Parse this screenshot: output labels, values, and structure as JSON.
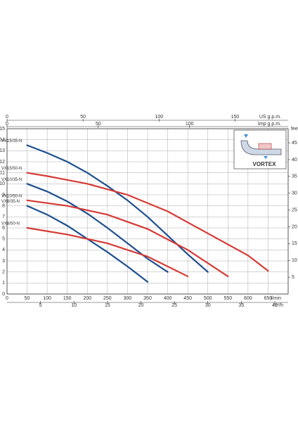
{
  "chart_data": {
    "type": "line",
    "x_label": "l/min",
    "x2_label": "m³/h",
    "top_label": "US g.p.m.",
    "top2_label": "Imp g.p.m.",
    "y2_label": "feet",
    "xlim": [
      0,
      700
    ],
    "xticks": [
      0,
      50,
      100,
      150,
      200,
      250,
      300,
      350,
      400,
      450,
      500,
      550,
      600,
      650
    ],
    "x2lim": [
      0,
      42
    ],
    "x2ticks": [
      5,
      10,
      15,
      20,
      25,
      30,
      35,
      40
    ],
    "toplim": [
      0,
      184.9
    ],
    "topticks": [
      0,
      50,
      100,
      150
    ],
    "top2lim": [
      0,
      154
    ],
    "top2ticks": [
      0,
      50,
      100
    ],
    "ylim": [
      0,
      15
    ],
    "yticks": [
      0,
      1,
      2,
      3,
      4,
      5,
      6,
      7,
      8,
      9,
      10,
      11,
      12,
      13,
      14,
      15
    ],
    "y2lim": [
      0,
      49.2
    ],
    "y2ticks": [
      5,
      10,
      15,
      20,
      25,
      30,
      35,
      40,
      45
    ],
    "grid": true,
    "inset_label": "VORTEX",
    "series": [
      {
        "name": "VX15/35-N",
        "color": "#1d4f8f",
        "x": [
          50,
          100,
          150,
          200,
          250,
          300,
          350,
          400,
          450,
          500
        ],
        "values": [
          13.5,
          12.8,
          12,
          11,
          9.8,
          8.5,
          7,
          5.3,
          3.6,
          2
        ]
      },
      {
        "name": "VX15/50-N",
        "color": "#d63a35",
        "x": [
          50,
          100,
          200,
          300,
          400,
          500,
          600,
          650
        ],
        "values": [
          11,
          10.7,
          10,
          9,
          7.5,
          5.5,
          3.5,
          2.1
        ]
      },
      {
        "name": "VX10/35-N",
        "color": "#1d4f8f",
        "x": [
          50,
          100,
          150,
          200,
          250,
          300,
          350,
          400
        ],
        "values": [
          10,
          9.3,
          8.4,
          7.3,
          6,
          4.6,
          3.2,
          2
        ]
      },
      {
        "name": "VX10/50-N",
        "color": "#d63a35",
        "x": [
          50,
          150,
          250,
          350,
          450,
          550
        ],
        "values": [
          8.5,
          8,
          7.2,
          5.9,
          4,
          1.6
        ]
      },
      {
        "name": "VX8/35-N",
        "color": "#1d4f8f",
        "x": [
          50,
          100,
          150,
          200,
          250,
          300,
          350
        ],
        "values": [
          8,
          7.2,
          6.2,
          5,
          3.8,
          2.5,
          1.1
        ]
      },
      {
        "name": "VX8/50-N",
        "color": "#d63a35",
        "x": [
          50,
          150,
          250,
          350,
          450
        ],
        "values": [
          6,
          5.4,
          4.6,
          3.4,
          1.6
        ]
      }
    ]
  }
}
